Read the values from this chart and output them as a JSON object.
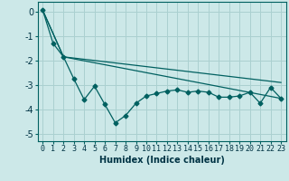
{
  "xlabel": "Humidex (Indice chaleur)",
  "bg_color": "#cce8e8",
  "grid_color": "#aad0d0",
  "line_color": "#006060",
  "xlim": [
    -0.5,
    23.5
  ],
  "ylim": [
    -5.3,
    0.4
  ],
  "yticks": [
    0,
    -1,
    -2,
    -3,
    -4,
    -5
  ],
  "ytick_labels": [
    "0",
    "-1",
    "-2",
    "-3",
    "-4",
    "-5"
  ],
  "xticks": [
    0,
    1,
    2,
    3,
    4,
    5,
    6,
    7,
    8,
    9,
    10,
    11,
    12,
    13,
    14,
    15,
    16,
    17,
    18,
    19,
    20,
    21,
    22,
    23
  ],
  "line1_x": [
    0,
    1,
    2,
    3,
    4,
    5,
    6,
    7,
    8,
    9,
    10,
    11,
    12,
    13,
    14,
    15,
    16,
    17,
    18,
    19,
    20,
    21,
    22,
    23
  ],
  "line1_y": [
    0.05,
    -1.3,
    -1.85,
    -2.75,
    -3.6,
    -3.05,
    -3.8,
    -4.55,
    -4.25,
    -3.75,
    -3.45,
    -3.35,
    -3.25,
    -3.2,
    -3.3,
    -3.25,
    -3.3,
    -3.5,
    -3.5,
    -3.45,
    -3.3,
    -3.75,
    -3.1,
    -3.55
  ],
  "line2_x": [
    0,
    2,
    23
  ],
  "line2_y": [
    0.05,
    -1.85,
    -2.9
  ],
  "line3_x": [
    0,
    2,
    23
  ],
  "line3_y": [
    0.05,
    -1.85,
    -3.55
  ],
  "marker": "D",
  "marker_size": 2.5,
  "line_width": 0.9,
  "tick_fontsize": 6,
  "xlabel_fontsize": 7
}
